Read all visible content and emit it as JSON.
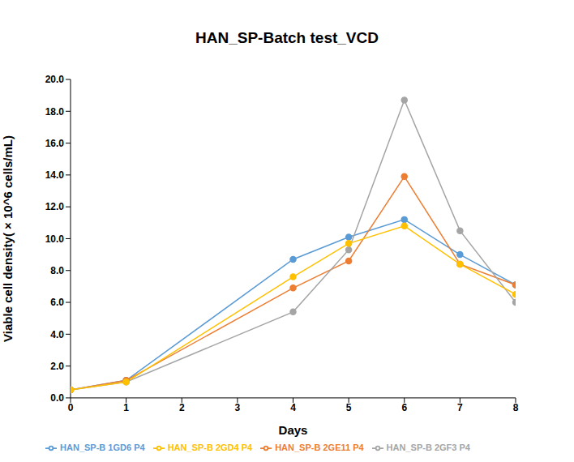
{
  "chart_data": {
    "type": "line",
    "title": "HAN_SP-Batch test_VCD",
    "x_label": "Days",
    "y_label": "Viable cell density( × 10^6 cells/mL)",
    "x": [
      0,
      1,
      4,
      5,
      6,
      7,
      8
    ],
    "series": [
      {
        "name": "HAN_SP-B 1GD6 P4",
        "color": "#5B9BD5",
        "values": [
          0.5,
          1.1,
          8.7,
          10.1,
          11.2,
          9.0,
          7.1
        ]
      },
      {
        "name": "HAN_SP-B 2GE11 P4",
        "color": "#ED7D31",
        "values": [
          0.5,
          1.1,
          6.9,
          8.6,
          13.9,
          8.4,
          7.1
        ]
      },
      {
        "name": "HAN_SP-B 2GF3 P4",
        "color": "#A5A5A5",
        "values": [
          0.5,
          1.0,
          5.4,
          9.3,
          18.7,
          10.5,
          6.0
        ]
      },
      {
        "name": "HAN_SP-B 2GD4 P4",
        "color": "#FFC000",
        "values": [
          0.5,
          1.0,
          7.6,
          9.7,
          10.8,
          8.4,
          6.5
        ]
      }
    ],
    "xlim": [
      0,
      8
    ],
    "xticks": [
      0,
      1,
      2,
      3,
      4,
      5,
      6,
      7,
      8
    ],
    "ylim": [
      0,
      20
    ],
    "yticks": [
      {
        "value": 0,
        "label": "0.0"
      },
      {
        "value": 2,
        "label": "2.0"
      },
      {
        "value": 4,
        "label": "4.0"
      },
      {
        "value": 6,
        "label": "6.0"
      },
      {
        "value": 8,
        "label": "8.0"
      },
      {
        "value": 10,
        "label": "10.0"
      },
      {
        "value": 12,
        "label": "12.0"
      },
      {
        "value": 14,
        "label": "14.0"
      },
      {
        "value": 16,
        "label": "16.0"
      },
      {
        "value": 18,
        "label": "18.0"
      },
      {
        "value": 20,
        "label": "20.0"
      }
    ],
    "grid": false,
    "legend": "bottom",
    "marker": "circle"
  }
}
